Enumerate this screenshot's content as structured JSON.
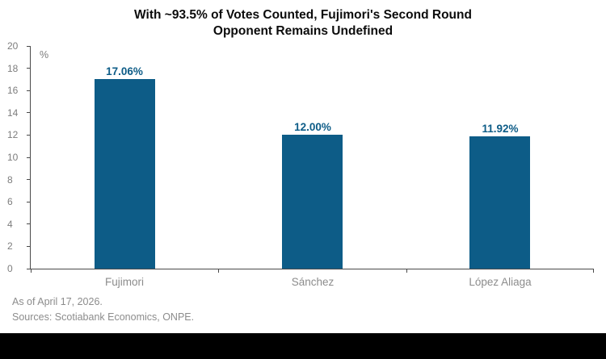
{
  "chart_data": {
    "type": "bar",
    "title": "With ~93.5% of Votes Counted, Fujimori's Second Round Opponent Remains Undefined",
    "title_lines": [
      "With ~93.5% of Votes Counted, Fujimori's Second Round",
      "Opponent Remains Undefined"
    ],
    "unit_label": "%",
    "categories": [
      "Fujimori",
      "Sánchez",
      "López Aliaga"
    ],
    "values": [
      17.06,
      12.0,
      11.92
    ],
    "value_labels": [
      "17.06%",
      "12.00%",
      "11.92%"
    ],
    "ylabel": "%",
    "xlabel": "",
    "ylim": [
      0,
      20
    ],
    "ytick_step": 2,
    "grid": false,
    "legend": "none",
    "colors": {
      "bar": "#0d5c87",
      "value_label": "#0d5c87",
      "axis": "#4a4a4a",
      "tick_label": "#7d7d7d",
      "category_label": "#8c8c8c",
      "footer_text": "#8c8c8c",
      "title_text": "#0c0c0c",
      "bottom_bar": "#000000"
    }
  },
  "footer": {
    "as_of": "As of April 17, 2026.",
    "sources": "Sources: Scotiabank Economics, ONPE."
  }
}
